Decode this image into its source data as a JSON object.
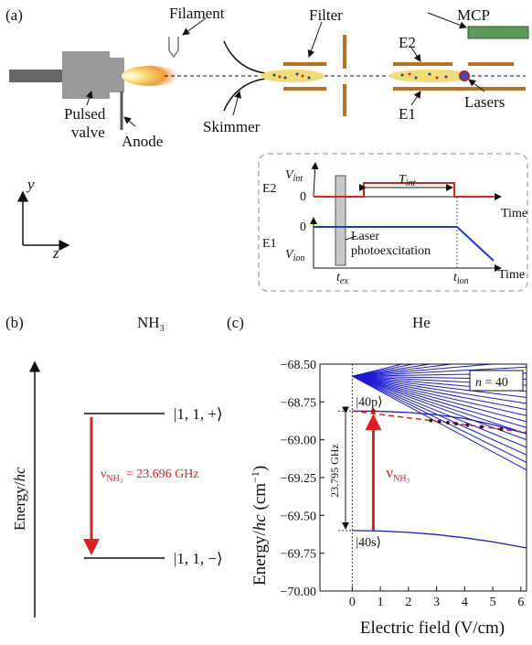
{
  "panel_a": {
    "label": "(a)",
    "filament": "Filament",
    "filter": "Filter",
    "mcp": "MCP",
    "e2": "E2",
    "e1": "E1",
    "skimmer": "Skimmer",
    "lasers": "Lasers",
    "pulsed_valve": [
      "Pulsed",
      "valve"
    ],
    "anode": "Anode",
    "axis_y": "y",
    "axis_z": "z",
    "timing": {
      "e2": "E2",
      "v_int": [
        "V",
        "int"
      ],
      "zero_top": "0",
      "t_int": [
        "T",
        "int"
      ],
      "time_top": "Time",
      "e1": "E1",
      "zero_bottom": "0",
      "v_ion": [
        "V",
        "ion"
      ],
      "laser": [
        "Laser",
        "photoexcitation"
      ],
      "time_bottom": "Time",
      "t_ex": [
        "t",
        "ex"
      ],
      "t_ion": [
        "t",
        "ion"
      ]
    }
  },
  "panel_b": {
    "label": "(b)",
    "molecule": [
      "NH",
      "3"
    ],
    "ylabel": [
      "Energy/",
      "hc"
    ],
    "upper_level": "|1, 1, +⟩",
    "lower_level": "|1, 1, −⟩",
    "transition": [
      "ν",
      "NH",
      "3",
      " = 23.696 GHz"
    ]
  },
  "panel_c_label": "(c)",
  "chart_data": {
    "type": "line",
    "title": "He",
    "xlabel": "Electric field (V/cm)",
    "ylabel": [
      "Energy/",
      "hc",
      " (cm",
      "−1",
      ")"
    ],
    "xlim": [
      -1.15,
      6.2
    ],
    "xticks": [
      0,
      1,
      2,
      3,
      4,
      5,
      6
    ],
    "ylim": [
      -70.0,
      -68.5
    ],
    "yticks": [
      {
        "value": -70.0,
        "label": "−70.00"
      },
      {
        "value": -69.75,
        "label": "−69.75"
      },
      {
        "value": -69.5,
        "label": "−69.50"
      },
      {
        "value": -69.25,
        "label": "−69.25"
      },
      {
        "value": -69.0,
        "label": "−69.00"
      },
      {
        "value": -68.75,
        "label": "−68.75"
      },
      {
        "value": -68.5,
        "label": "−68.50"
      }
    ],
    "series": [
      {
        "name": "|40s⟩",
        "color": "#1a1ad6",
        "x": [
          0,
          1,
          2,
          3,
          4,
          5,
          6.2
        ],
        "values": [
          -69.6,
          -69.603,
          -69.612,
          -69.627,
          -69.648,
          -69.675,
          -69.715
        ]
      },
      {
        "name": "|40p⟩",
        "color": "#1a1ad6",
        "x": [
          0,
          1,
          2,
          3,
          4,
          5,
          6.2
        ],
        "values": [
          -68.81,
          -68.812,
          -68.82,
          -68.835,
          -68.86,
          -68.9,
          -68.96
        ]
      }
    ],
    "manifold": {
      "color": "#1a1ad6",
      "x": [
        0,
        6.2
      ],
      "origin": -68.58,
      "ends": [
        -68.3,
        -68.35,
        -68.4,
        -68.44,
        -68.48,
        -68.52,
        -68.56,
        -68.6,
        -68.64,
        -68.68,
        -68.72,
        -68.76,
        -68.8,
        -68.84,
        -68.88,
        -68.92,
        -68.96,
        -69.0,
        -69.05,
        -69.1,
        -69.15,
        -69.2
      ]
    },
    "dashed": {
      "color": "#e02020",
      "x": [
        0,
        6.2
      ],
      "values": [
        -68.81,
        -68.95
      ]
    },
    "crossings": {
      "x": [
        2.8,
        3.1,
        3.4,
        3.7,
        4.1,
        4.6,
        5.3
      ],
      "values": [
        -68.873,
        -68.88,
        -68.887,
        -68.894,
        -68.903,
        -68.914,
        -68.93
      ]
    },
    "n_label": [
      "n",
      " = 40"
    ],
    "bracket_label": "23.795 GHz",
    "arrow_label": [
      "ν",
      "NH",
      "3"
    ],
    "arrow": {
      "x": 0.75,
      "from": -69.6,
      "to": -68.81
    }
  }
}
